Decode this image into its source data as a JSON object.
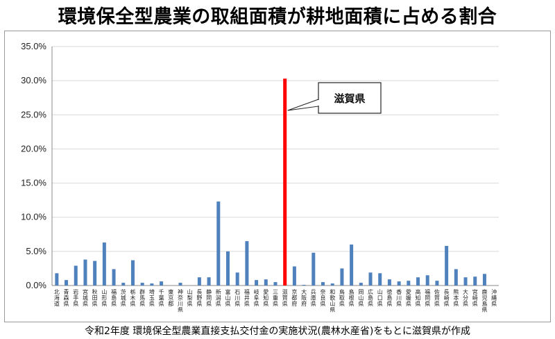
{
  "title": "環境保全型農業の取組面積が耕地面積に占める割合",
  "source_note": "令和2年度 環境保全型農業直接支払交付金の実施状況(農林水産省)をもとに滋賀県が作成",
  "colors": {
    "bar": "#4f81bd",
    "highlight": "#ff0000",
    "grid": "#d9d9d9",
    "axis": "#888888"
  },
  "chart_data": {
    "type": "bar",
    "title": "環境保全型農業の取組面積が耕地面積に占める割合",
    "xlabel": "",
    "ylabel": "",
    "ylim": [
      0,
      35
    ],
    "yticks": [
      "0.0%",
      "5.0%",
      "10.0%",
      "15.0%",
      "20.0%",
      "25.0%",
      "30.0%",
      "35.0%"
    ],
    "grid": true,
    "legend": "none",
    "highlight": "滋賀県",
    "callout": "滋賀県",
    "categories": [
      "北海道",
      "青森県",
      "岩手県",
      "宮城県",
      "秋田県",
      "山形県",
      "福島県",
      "茨城県",
      "栃木県",
      "群馬県",
      "埼玉県",
      "千葉県",
      "東京都",
      "神奈川県",
      "山梨県",
      "長野県",
      "静岡県",
      "新潟県",
      "富山県",
      "石川県",
      "福井県",
      "岐阜県",
      "愛知県",
      "三重県",
      "滋賀県",
      "京都府",
      "大阪府",
      "兵庫県",
      "奈良県",
      "和歌山県",
      "鳥取県",
      "島根県",
      "岡山県",
      "広島県",
      "山口県",
      "徳島県",
      "香川県",
      "愛媛県",
      "高知県",
      "福岡県",
      "佐賀県",
      "長崎県",
      "熊本県",
      "大分県",
      "宮崎県",
      "鹿児島県",
      "沖縄県"
    ],
    "values": [
      1.8,
      0.8,
      2.9,
      3.8,
      3.6,
      6.3,
      2.4,
      0.4,
      3.7,
      0.4,
      0.3,
      0.6,
      0.0,
      0.4,
      0.0,
      1.2,
      1.2,
      12.3,
      5.0,
      1.9,
      6.5,
      0.8,
      0.9,
      0.5,
      30.3,
      2.8,
      0.1,
      4.8,
      0.5,
      0.3,
      2.5,
      6.0,
      0.4,
      1.9,
      1.8,
      0.9,
      0.6,
      0.7,
      1.2,
      1.5,
      0.7,
      5.8,
      2.4,
      1.2,
      1.3,
      1.7,
      0.0
    ]
  }
}
